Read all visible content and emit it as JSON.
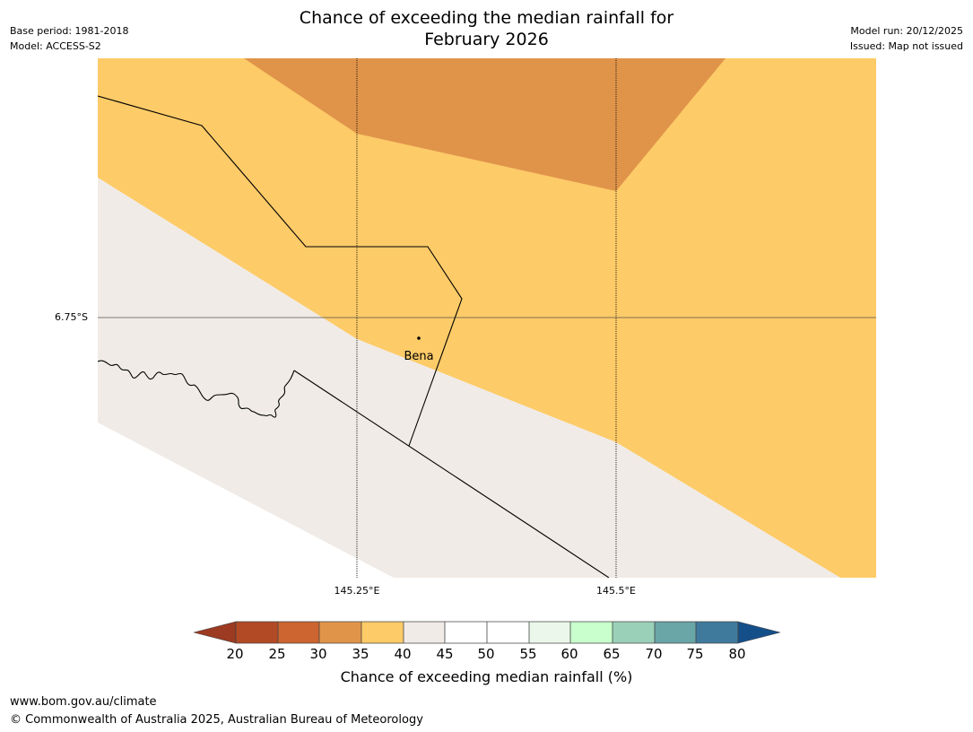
{
  "header": {
    "title_line1": "Chance of exceeding the median rainfall for",
    "title_line2": "February 2026",
    "base_period": "Base period: 1981-2018",
    "model": "Model: ACCESS-S2",
    "model_run": "Model run: 20/12/2025",
    "issued": "Issued: Map not issued"
  },
  "map": {
    "lat_label": "6.75°S",
    "lon_labels": [
      "145.25°E",
      "145.5°E"
    ],
    "town": "Bena",
    "colors": {
      "c30_35": "#e0944a",
      "c35_40": "#fdcb68",
      "c40_45": "#f0ebe6",
      "background": "#ffffff"
    }
  },
  "colorbar": {
    "ticks": [
      "20",
      "25",
      "30",
      "35",
      "40",
      "45",
      "50",
      "55",
      "60",
      "65",
      "70",
      "75",
      "80"
    ],
    "colors": [
      "#9c3a22",
      "#b24a26",
      "#cc6530",
      "#e0944a",
      "#fdcb68",
      "#f0ebe6",
      "#ffffff",
      "#ffffff",
      "#eaf7ea",
      "#c8ffcc",
      "#9bd0b8",
      "#6aa5a8",
      "#3f7a9c",
      "#144f8a"
    ],
    "title": "Chance of exceeding median rainfall (%)"
  },
  "footer": {
    "url": "www.bom.gov.au/climate",
    "copyright": "© Commonwealth of Australia 2025, Australian Bureau of Meteorology"
  }
}
